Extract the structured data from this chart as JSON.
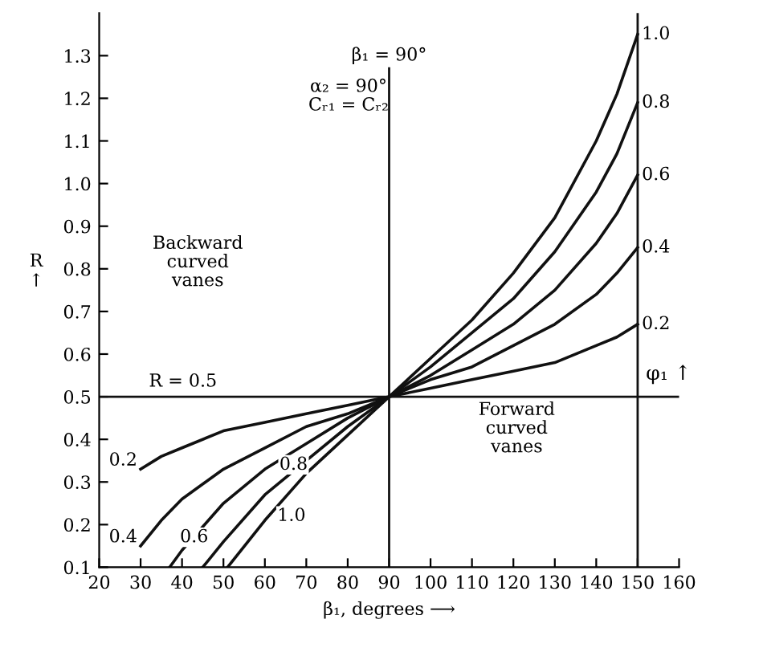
{
  "chart_data": {
    "type": "line",
    "xlabel": "β₁, degrees ⟶",
    "ylabel": "R\n↑",
    "xlim": [
      20,
      160
    ],
    "ylim": [
      0.1,
      1.4
    ],
    "xticks": [
      20,
      30,
      40,
      50,
      60,
      70,
      80,
      90,
      100,
      110,
      120,
      130,
      140,
      150,
      160
    ],
    "yticks": [
      0.1,
      0.2,
      0.3,
      0.4,
      0.5,
      0.6,
      0.7,
      0.8,
      0.9,
      {
        "value": 1.0,
        "label": "1.0"
      },
      1.1,
      1.2,
      1.3
    ],
    "grid": false,
    "legend": false,
    "marker": "none",
    "line_style": "solid",
    "series": [
      {
        "name": "0.2",
        "color": "#111111",
        "x": [
          30,
          35,
          40,
          50,
          60,
          70,
          80,
          90,
          100,
          110,
          120,
          130,
          140,
          145,
          150
        ],
        "values": [
          0.33,
          0.36,
          0.38,
          0.42,
          0.44,
          0.46,
          0.48,
          0.5,
          0.52,
          0.54,
          0.56,
          0.58,
          0.62,
          0.64,
          0.67
        ]
      },
      {
        "name": "0.4",
        "color": "#111111",
        "x": [
          30,
          35,
          40,
          50,
          60,
          70,
          80,
          90,
          100,
          110,
          120,
          130,
          140,
          145,
          150
        ],
        "values": [
          0.15,
          0.21,
          0.26,
          0.33,
          0.38,
          0.43,
          0.46,
          0.5,
          0.54,
          0.57,
          0.62,
          0.67,
          0.74,
          0.79,
          0.85
        ]
      },
      {
        "name": "0.6",
        "color": "#111111",
        "x": [
          37,
          40,
          50,
          60,
          70,
          80,
          90,
          100,
          110,
          120,
          130,
          140,
          145,
          150
        ],
        "values": [
          0.1,
          0.14,
          0.25,
          0.33,
          0.39,
          0.45,
          0.5,
          0.55,
          0.61,
          0.67,
          0.75,
          0.86,
          0.93,
          1.02
        ]
      },
      {
        "name": "0.8",
        "color": "#111111",
        "x": [
          45,
          50,
          60,
          70,
          80,
          90,
          100,
          110,
          120,
          130,
          140,
          145,
          150
        ],
        "values": [
          0.1,
          0.16,
          0.27,
          0.35,
          0.43,
          0.5,
          0.57,
          0.65,
          0.73,
          0.84,
          0.98,
          1.07,
          1.19
        ]
      },
      {
        "name": "1.0",
        "color": "#111111",
        "x": [
          51,
          60,
          70,
          80,
          90,
          100,
          110,
          120,
          130,
          140,
          145,
          150
        ],
        "values": [
          0.1,
          0.21,
          0.32,
          0.41,
          0.5,
          0.59,
          0.68,
          0.79,
          0.92,
          1.1,
          1.21,
          1.35
        ]
      }
    ],
    "ref_lines": [
      {
        "axis": "y",
        "value": 0.5,
        "label": "R = 0.5",
        "color": "#111111"
      },
      {
        "axis": "x",
        "value": 90,
        "label": "β₁ = 90°",
        "color": "#111111"
      },
      {
        "axis": "x",
        "value": 150,
        "label": "φ₁ ↑",
        "color": "#111111"
      }
    ],
    "annotations": [
      "α₂ = 90°\nCᵣ₁ = Cᵣ₂",
      "Backward\ncurved\nvanes",
      "Forward\ncurved\nvanes"
    ]
  }
}
